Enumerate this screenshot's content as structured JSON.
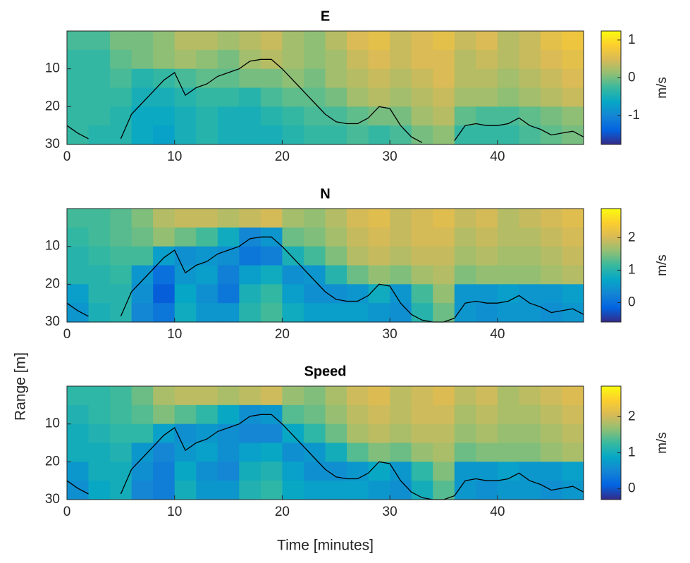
{
  "chart_data": [
    {
      "type": "heatmap",
      "title": "E",
      "clabel": "m/s",
      "colormap": [
        "#352a87",
        "#0363e1",
        "#1485d4",
        "#06a7c6",
        "#38b99e",
        "#92bf73",
        "#d9ba56",
        "#fcce2e",
        "#f9fb0e"
      ],
      "xbins": [
        0,
        2,
        4,
        6,
        8,
        10,
        12,
        14,
        16,
        18,
        20,
        22,
        24,
        26,
        28,
        30,
        32,
        34,
        36,
        38,
        40,
        42,
        44,
        46,
        48
      ],
      "ybins": [
        0,
        5,
        10,
        15,
        20,
        25,
        30
      ],
      "values": [
        [
          -0.2,
          -0.2,
          0.0,
          0.0,
          0.1,
          0.3,
          0.3,
          0.2,
          0.3,
          0.4,
          0.2,
          0.1,
          0.3,
          0.5,
          0.6,
          0.4,
          0.5,
          0.6,
          0.4,
          0.5,
          0.3,
          0.4,
          0.6,
          0.7
        ],
        [
          -0.3,
          -0.3,
          -0.1,
          0.0,
          0.1,
          0.2,
          0.1,
          0.0,
          0.2,
          0.3,
          0.2,
          0.1,
          0.2,
          0.4,
          0.5,
          0.4,
          0.5,
          0.5,
          0.3,
          0.4,
          0.3,
          0.4,
          0.5,
          0.6
        ],
        [
          -0.3,
          -0.3,
          -0.2,
          -0.4,
          -0.3,
          -0.2,
          -0.1,
          -0.1,
          0.0,
          0.0,
          0.1,
          0.0,
          0.2,
          0.3,
          0.4,
          0.3,
          0.4,
          0.5,
          0.3,
          0.3,
          0.2,
          0.3,
          0.4,
          0.5
        ],
        [
          -0.3,
          -0.3,
          -0.3,
          -0.5,
          -0.5,
          -0.4,
          -0.3,
          -0.3,
          -0.4,
          -0.2,
          -0.1,
          -0.1,
          0.0,
          0.2,
          0.3,
          0.2,
          0.3,
          0.4,
          0.2,
          0.2,
          0.1,
          0.2,
          0.3,
          0.4
        ],
        [
          -0.3,
          -0.3,
          -0.4,
          -0.6,
          -0.6,
          -0.5,
          -0.4,
          -0.5,
          -0.5,
          -0.4,
          -0.3,
          -0.2,
          -0.2,
          -0.1,
          0.0,
          0.0,
          0.2,
          0.3,
          -0.1,
          -0.2,
          -0.2,
          -0.1,
          0.0,
          0.1
        ],
        [
          -0.3,
          -0.4,
          -0.4,
          -0.6,
          -0.7,
          -0.5,
          -0.4,
          -0.5,
          -0.5,
          -0.5,
          -0.4,
          -0.3,
          -0.3,
          -0.2,
          -0.3,
          -0.2,
          0.0,
          0.1,
          -0.3,
          -0.3,
          -0.3,
          -0.2,
          -0.1,
          0.0
        ]
      ],
      "line": {
        "x": [
          0,
          1,
          2,
          3,
          4,
          5,
          6,
          7,
          8,
          9,
          10,
          11,
          12,
          13,
          14,
          15,
          16,
          17,
          18,
          19,
          20,
          21,
          22,
          23,
          24,
          25,
          26,
          27,
          28,
          29,
          30,
          31,
          32,
          33,
          34,
          35,
          36,
          37,
          38,
          39,
          40,
          41,
          42,
          43,
          44,
          45,
          46,
          47,
          48
        ],
        "values": [
          25,
          27,
          28.5,
          null,
          null,
          28.5,
          22,
          19,
          16,
          13,
          11,
          17,
          15,
          14,
          12,
          11,
          10,
          8,
          7.5,
          7.5,
          10,
          13,
          16,
          19,
          22,
          24,
          24.5,
          24.5,
          23,
          20,
          20.5,
          25,
          28,
          29.5,
          null,
          null,
          29,
          25,
          24.5,
          25,
          25,
          24.5,
          23,
          25,
          26,
          27.5,
          27,
          26.5,
          28
        ]
      },
      "xlim": [
        0,
        48
      ],
      "xticks": [
        0,
        10,
        20,
        30,
        40
      ],
      "ylim": [
        30,
        0
      ],
      "yticks": [
        10,
        20,
        30
      ],
      "clim": [
        -1.77,
        1.24
      ],
      "cticks": [
        -1,
        0,
        1
      ]
    },
    {
      "type": "heatmap",
      "title": "N",
      "clabel": "m/s",
      "colormap": [
        "#352a87",
        "#0363e1",
        "#1485d4",
        "#06a7c6",
        "#38b99e",
        "#92bf73",
        "#d9ba56",
        "#fcce2e",
        "#f9fb0e"
      ],
      "xbins": [
        0,
        2,
        4,
        6,
        8,
        10,
        12,
        14,
        16,
        18,
        20,
        22,
        24,
        26,
        28,
        30,
        32,
        34,
        36,
        38,
        40,
        42,
        44,
        46,
        48
      ],
      "ybins": [
        0,
        5,
        10,
        15,
        20,
        25,
        30
      ],
      "values": [
        [
          1.2,
          1.2,
          1.3,
          1.5,
          1.8,
          1.9,
          1.9,
          1.8,
          1.9,
          2.0,
          1.7,
          1.6,
          1.8,
          2.0,
          2.1,
          1.9,
          2.0,
          2.1,
          1.9,
          2.0,
          1.8,
          1.9,
          2.0,
          2.1
        ],
        [
          1.1,
          1.2,
          1.3,
          1.4,
          1.6,
          1.4,
          1.2,
          0.8,
          0.3,
          0.5,
          1.4,
          1.5,
          1.7,
          1.9,
          2.0,
          1.9,
          2.0,
          2.0,
          1.8,
          1.9,
          1.8,
          1.8,
          1.9,
          2.0
        ],
        [
          1.0,
          1.1,
          1.2,
          1.2,
          0.6,
          0.4,
          0.5,
          0.4,
          0.1,
          0.2,
          0.9,
          1.2,
          1.5,
          1.8,
          1.9,
          1.8,
          1.9,
          1.9,
          1.7,
          1.8,
          1.7,
          1.7,
          1.8,
          1.9
        ],
        [
          1.0,
          1.0,
          1.1,
          0.5,
          0.0,
          0.5,
          0.6,
          0.2,
          0.6,
          0.8,
          0.4,
          0.5,
          1.0,
          1.4,
          1.6,
          1.5,
          1.7,
          1.8,
          1.5,
          1.6,
          1.6,
          1.6,
          1.7,
          1.8
        ],
        [
          0.6,
          1.0,
          1.0,
          0.4,
          -0.2,
          0.7,
          0.4,
          0.1,
          0.9,
          1.1,
          0.6,
          0.4,
          0.4,
          0.5,
          0.8,
          0.5,
          1.2,
          1.6,
          0.5,
          0.5,
          0.6,
          0.5,
          0.5,
          0.6
        ],
        [
          0.5,
          0.9,
          1.0,
          0.3,
          0.1,
          0.8,
          0.5,
          0.5,
          1.0,
          1.2,
          0.8,
          0.6,
          0.6,
          0.6,
          0.5,
          0.4,
          1.0,
          1.4,
          0.5,
          0.4,
          0.5,
          0.5,
          0.4,
          0.5
        ]
      ],
      "line": {
        "x": [
          0,
          1,
          2,
          3,
          4,
          5,
          6,
          7,
          8,
          9,
          10,
          11,
          12,
          13,
          14,
          15,
          16,
          17,
          18,
          19,
          20,
          21,
          22,
          23,
          24,
          25,
          26,
          27,
          28,
          29,
          30,
          31,
          32,
          33,
          34,
          35,
          36,
          37,
          38,
          39,
          40,
          41,
          42,
          43,
          44,
          45,
          46,
          47,
          48
        ],
        "values": [
          25,
          27,
          28.5,
          null,
          null,
          28.5,
          22,
          19,
          16,
          13,
          11,
          17,
          15,
          14,
          12,
          11,
          10,
          8,
          7.5,
          7.5,
          10,
          13,
          16,
          19,
          22,
          24,
          24.5,
          24.5,
          23,
          20,
          20.5,
          25,
          28,
          29.5,
          30,
          30,
          29,
          25,
          24.5,
          25,
          25,
          24.5,
          23,
          25,
          26,
          27.5,
          27,
          26.5,
          28
        ]
      },
      "xlim": [
        0,
        48
      ],
      "xticks": [
        0,
        10,
        20,
        30,
        40
      ],
      "ylim": [
        30,
        0
      ],
      "yticks": [
        10,
        20,
        30
      ],
      "clim": [
        -0.6,
        2.9
      ],
      "cticks": [
        0,
        1,
        2
      ]
    },
    {
      "type": "heatmap",
      "title": "Speed",
      "clabel": "m/s",
      "xlabel": "Time [minutes]",
      "ylabel": "Range [m]",
      "colormap": [
        "#352a87",
        "#0363e1",
        "#1485d4",
        "#06a7c6",
        "#38b99e",
        "#92bf73",
        "#d9ba56",
        "#fcce2e",
        "#f9fb0e"
      ],
      "xbins": [
        0,
        2,
        4,
        6,
        8,
        10,
        12,
        14,
        16,
        18,
        20,
        22,
        24,
        26,
        28,
        30,
        32,
        34,
        36,
        38,
        40,
        42,
        44,
        46,
        48
      ],
      "ybins": [
        0,
        5,
        10,
        15,
        20,
        25,
        30
      ],
      "values": [
        [
          1.2,
          1.2,
          1.3,
          1.5,
          1.8,
          1.9,
          1.9,
          1.8,
          1.9,
          2.0,
          1.7,
          1.6,
          1.8,
          2.0,
          2.1,
          1.9,
          2.0,
          2.1,
          1.9,
          2.0,
          1.8,
          1.9,
          2.0,
          2.1
        ],
        [
          1.1,
          1.2,
          1.3,
          1.4,
          1.6,
          1.4,
          1.2,
          0.9,
          0.6,
          0.7,
          1.4,
          1.5,
          1.7,
          1.9,
          2.0,
          1.9,
          2.0,
          2.0,
          1.8,
          1.9,
          1.8,
          1.8,
          1.9,
          2.0
        ],
        [
          1.0,
          1.1,
          1.2,
          1.2,
          0.8,
          0.6,
          0.7,
          0.6,
          0.5,
          0.5,
          0.9,
          1.2,
          1.5,
          1.8,
          1.9,
          1.8,
          1.9,
          1.9,
          1.7,
          1.8,
          1.7,
          1.7,
          1.8,
          1.9
        ],
        [
          1.0,
          1.0,
          1.1,
          0.7,
          0.5,
          0.7,
          0.8,
          0.6,
          0.8,
          0.9,
          0.6,
          0.7,
          1.0,
          1.4,
          1.6,
          1.5,
          1.7,
          1.8,
          1.5,
          1.6,
          1.6,
          1.6,
          1.7,
          1.8
        ],
        [
          0.7,
          1.0,
          1.0,
          0.6,
          0.4,
          0.9,
          0.6,
          0.5,
          1.0,
          1.1,
          0.8,
          0.6,
          0.6,
          0.7,
          0.9,
          0.7,
          1.2,
          1.6,
          0.7,
          0.7,
          0.8,
          0.7,
          0.7,
          0.8
        ],
        [
          0.6,
          0.9,
          1.0,
          0.5,
          0.4,
          1.0,
          0.7,
          0.7,
          1.1,
          1.2,
          0.9,
          0.8,
          0.8,
          0.8,
          0.7,
          0.6,
          1.0,
          1.4,
          0.7,
          0.6,
          0.7,
          0.7,
          0.6,
          0.7
        ]
      ],
      "line": {
        "x": [
          0,
          1,
          2,
          3,
          4,
          5,
          6,
          7,
          8,
          9,
          10,
          11,
          12,
          13,
          14,
          15,
          16,
          17,
          18,
          19,
          20,
          21,
          22,
          23,
          24,
          25,
          26,
          27,
          28,
          29,
          30,
          31,
          32,
          33,
          34,
          35,
          36,
          37,
          38,
          39,
          40,
          41,
          42,
          43,
          44,
          45,
          46,
          47,
          48
        ],
        "values": [
          25,
          27,
          28.5,
          null,
          null,
          28.5,
          22,
          19,
          16,
          13,
          11,
          17,
          15,
          14,
          12,
          11,
          10,
          8,
          7.5,
          7.5,
          10,
          13,
          16,
          19,
          22,
          24,
          24.5,
          24.5,
          23,
          20,
          20.5,
          25,
          28,
          29.5,
          30,
          30,
          29,
          25,
          24.5,
          25,
          25,
          24.5,
          23,
          25,
          26,
          27.5,
          27,
          26.5,
          28
        ]
      },
      "xlim": [
        0,
        48
      ],
      "xticks": [
        0,
        10,
        20,
        30,
        40
      ],
      "ylim": [
        30,
        0
      ],
      "yticks": [
        10,
        20,
        30
      ],
      "clim": [
        -0.3,
        2.85
      ],
      "cticks": [
        0,
        1,
        2
      ]
    }
  ]
}
